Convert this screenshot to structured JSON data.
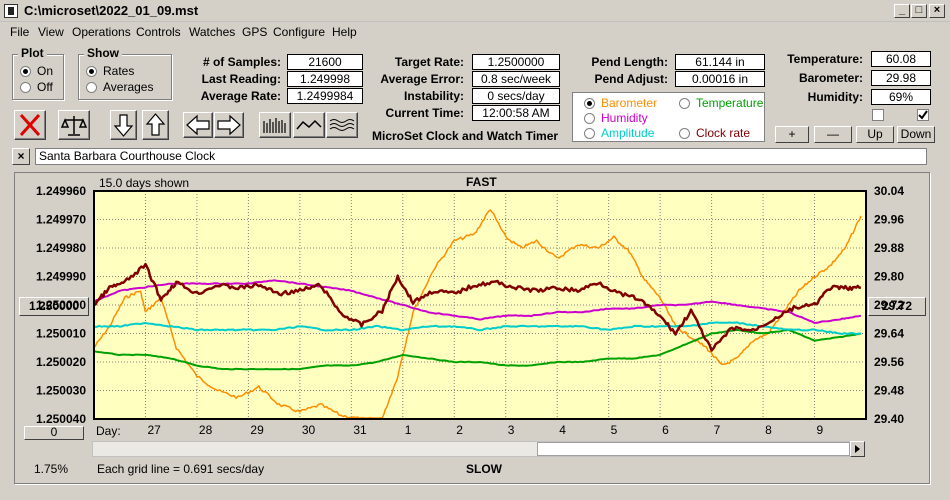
{
  "window": {
    "title": "C:\\microset\\2022_01_09.mst"
  },
  "menu": [
    "File",
    "View",
    "Operations",
    "Controls",
    "Watches",
    "GPS",
    "Configure",
    "Help"
  ],
  "plot_group": {
    "title": "Plot",
    "on": "On",
    "off": "Off",
    "selected": "On"
  },
  "show_group": {
    "title": "Show",
    "rates": "Rates",
    "averages": "Averages",
    "selected": "Rates"
  },
  "stats": {
    "samples_label": "# of Samples:",
    "samples": "21600",
    "last_reading_label": "Last Reading:",
    "last_reading": "1.249998",
    "average_rate_label": "Average Rate:",
    "average_rate": "1.2499984",
    "target_rate_label": "Target Rate:",
    "target_rate": "1.2500000",
    "average_error_label": "Average Error:",
    "average_error": "0.8 sec/week",
    "instability_label": "Instability:",
    "instability": "0 secs/day",
    "current_time_label": "Current Time:",
    "current_time": "12:00:58 AM",
    "app_caption": "MicroSet Clock and Watch Timer",
    "pend_length_label": "Pend Length:",
    "pend_length": "61.144 in",
    "pend_adjust_label": "Pend Adjust:",
    "pend_adjust": "0.00016 in",
    "temperature_label": "Temperature:",
    "temperature": "60.08",
    "barometer_label": "Barometer:",
    "barometer": "29.98",
    "humidity_label": "Humidity:",
    "humidity": "69%"
  },
  "sensor_options": {
    "barometer": "Barometer",
    "temperature": "Temperature",
    "humidity": "Humidity",
    "amplitude": "Amplitude",
    "clock_rate": "Clock rate",
    "selected": "Barometer"
  },
  "colors": {
    "barometer": "#ff8c00",
    "temperature": "#00a000",
    "humidity": "#cc00cc",
    "amplitude": "#00cccc",
    "clock_rate": "#800000",
    "plot_bg": "#ffffc0"
  },
  "adjust_buttons": {
    "plus": "+",
    "minus": "—",
    "up": "Up",
    "down": "Down"
  },
  "clock_name": "Santa Barbara Courthouse Clock",
  "close_x": "×",
  "chart_labels": {
    "days_shown": "15.0 days shown",
    "fast": "FAST",
    "slow": "SLOW",
    "day_label": "Day:",
    "grid_note": "Each grid line = 0.691 secs/day",
    "percent": "1.75%",
    "left_value_btn": "1.250000",
    "right_value_btn": "29.72",
    "bottom_left_btn": "0"
  },
  "chart_data": {
    "type": "line",
    "x_categories": [
      "27",
      "28",
      "29",
      "30",
      "31",
      "1",
      "2",
      "3",
      "4",
      "5",
      "6",
      "7",
      "8",
      "9"
    ],
    "y_left": {
      "ticks": [
        "1.249960",
        "1.249970",
        "1.249980",
        "1.249990",
        "1.250000",
        "1.250010",
        "1.250020",
        "1.250030",
        "1.250040"
      ],
      "range": [
        1.24996,
        1.25004
      ],
      "inverted": true
    },
    "y_right": {
      "ticks": [
        "30.04",
        "29.96",
        "29.88",
        "29.80",
        "29.72",
        "29.64",
        "29.56",
        "29.48",
        "29.40"
      ],
      "range": [
        29.4,
        30.04
      ]
    },
    "x_range": [
      26.0,
      41.0
    ],
    "series": [
      {
        "name": "Barometer",
        "color": "#ff8c00",
        "axis": "right",
        "points": [
          [
            26.0,
            29.6
          ],
          [
            26.3,
            29.66
          ],
          [
            26.6,
            29.74
          ],
          [
            26.9,
            29.76
          ],
          [
            27.0,
            29.7
          ],
          [
            27.3,
            29.74
          ],
          [
            27.6,
            29.6
          ],
          [
            28.0,
            29.52
          ],
          [
            28.4,
            29.48
          ],
          [
            28.8,
            29.46
          ],
          [
            29.2,
            29.49
          ],
          [
            29.6,
            29.44
          ],
          [
            30.0,
            29.42
          ],
          [
            30.4,
            29.44
          ],
          [
            30.8,
            29.41
          ],
          [
            31.2,
            29.4
          ],
          [
            31.6,
            29.4
          ],
          [
            31.9,
            29.52
          ],
          [
            32.2,
            29.7
          ],
          [
            32.6,
            29.82
          ],
          [
            33.0,
            29.9
          ],
          [
            33.4,
            29.92
          ],
          [
            33.7,
            29.99
          ],
          [
            34.0,
            29.91
          ],
          [
            34.3,
            29.88
          ],
          [
            34.6,
            29.9
          ],
          [
            35.0,
            29.85
          ],
          [
            35.4,
            29.89
          ],
          [
            35.8,
            29.88
          ],
          [
            36.1,
            29.91
          ],
          [
            36.4,
            29.87
          ],
          [
            36.7,
            29.79
          ],
          [
            37.0,
            29.74
          ],
          [
            37.3,
            29.66
          ],
          [
            37.6,
            29.63
          ],
          [
            37.9,
            29.6
          ],
          [
            38.2,
            29.55
          ],
          [
            38.5,
            29.57
          ],
          [
            38.8,
            29.62
          ],
          [
            39.1,
            29.64
          ],
          [
            39.4,
            29.7
          ],
          [
            39.7,
            29.76
          ],
          [
            40.0,
            29.8
          ],
          [
            40.3,
            29.83
          ],
          [
            40.6,
            29.88
          ],
          [
            40.9,
            29.97
          ]
        ]
      },
      {
        "name": "Temperature",
        "color": "#00a000",
        "axis": "right",
        "points": [
          [
            26.0,
            29.59
          ],
          [
            26.5,
            29.58
          ],
          [
            27.0,
            29.58
          ],
          [
            27.5,
            29.57
          ],
          [
            28.0,
            29.55
          ],
          [
            28.5,
            29.54
          ],
          [
            29.0,
            29.54
          ],
          [
            29.5,
            29.54
          ],
          [
            30.0,
            29.54
          ],
          [
            30.5,
            29.55
          ],
          [
            31.0,
            29.55
          ],
          [
            31.5,
            29.56
          ],
          [
            32.0,
            29.58
          ],
          [
            32.5,
            29.57
          ],
          [
            33.0,
            29.56
          ],
          [
            33.5,
            29.56
          ],
          [
            34.0,
            29.55
          ],
          [
            34.5,
            29.55
          ],
          [
            35.0,
            29.56
          ],
          [
            35.5,
            29.56
          ],
          [
            36.0,
            29.57
          ],
          [
            36.5,
            29.57
          ],
          [
            37.0,
            29.58
          ],
          [
            37.5,
            29.61
          ],
          [
            38.0,
            29.64
          ],
          [
            38.5,
            29.65
          ],
          [
            39.0,
            29.64
          ],
          [
            39.5,
            29.65
          ],
          [
            40.0,
            29.62
          ],
          [
            40.5,
            29.63
          ],
          [
            40.9,
            29.64
          ]
        ]
      },
      {
        "name": "Humidity",
        "color": "#cc00cc",
        "axis": "right",
        "points": [
          [
            26.0,
            29.73
          ],
          [
            26.5,
            29.76
          ],
          [
            27.0,
            29.77
          ],
          [
            27.5,
            29.78
          ],
          [
            28.0,
            29.78
          ],
          [
            28.5,
            29.78
          ],
          [
            29.0,
            29.78
          ],
          [
            29.5,
            29.79
          ],
          [
            30.0,
            29.78
          ],
          [
            30.5,
            29.77
          ],
          [
            31.0,
            29.76
          ],
          [
            31.5,
            29.74
          ],
          [
            32.0,
            29.72
          ],
          [
            32.5,
            29.7
          ],
          [
            33.0,
            29.69
          ],
          [
            33.5,
            29.68
          ],
          [
            34.0,
            29.69
          ],
          [
            34.5,
            29.69
          ],
          [
            35.0,
            29.7
          ],
          [
            35.5,
            29.7
          ],
          [
            36.0,
            29.71
          ],
          [
            36.5,
            29.71
          ],
          [
            37.0,
            29.72
          ],
          [
            37.5,
            29.72
          ],
          [
            38.0,
            29.73
          ],
          [
            38.5,
            29.72
          ],
          [
            39.0,
            29.71
          ],
          [
            39.5,
            29.7
          ],
          [
            40.0,
            29.67
          ],
          [
            40.5,
            29.68
          ],
          [
            40.9,
            29.69
          ]
        ]
      },
      {
        "name": "Amplitude",
        "color": "#00cccc",
        "axis": "right",
        "points": [
          [
            26.0,
            29.66
          ],
          [
            26.5,
            29.66
          ],
          [
            27.0,
            29.67
          ],
          [
            27.5,
            29.66
          ],
          [
            28.0,
            29.65
          ],
          [
            28.5,
            29.65
          ],
          [
            29.0,
            29.65
          ],
          [
            29.5,
            29.65
          ],
          [
            30.0,
            29.66
          ],
          [
            30.5,
            29.65
          ],
          [
            31.0,
            29.65
          ],
          [
            31.5,
            29.66
          ],
          [
            32.0,
            29.65
          ],
          [
            32.5,
            29.66
          ],
          [
            33.0,
            29.66
          ],
          [
            33.5,
            29.65
          ],
          [
            34.0,
            29.66
          ],
          [
            34.5,
            29.66
          ],
          [
            35.0,
            29.66
          ],
          [
            35.5,
            29.66
          ],
          [
            36.0,
            29.65
          ],
          [
            36.5,
            29.66
          ],
          [
            37.0,
            29.66
          ],
          [
            37.5,
            29.66
          ],
          [
            38.0,
            29.67
          ],
          [
            38.5,
            29.67
          ],
          [
            39.0,
            29.66
          ],
          [
            39.5,
            29.65
          ],
          [
            40.0,
            29.65
          ],
          [
            40.5,
            29.64
          ],
          [
            40.9,
            29.64
          ]
        ]
      },
      {
        "name": "Clock rate",
        "color": "#800000",
        "axis": "left",
        "points": [
          [
            26.0,
            1.25
          ],
          [
            26.3,
            1.249994
          ],
          [
            26.6,
            1.249992
          ],
          [
            27.0,
            1.249986
          ],
          [
            27.3,
            1.249998
          ],
          [
            27.6,
            1.249992
          ],
          [
            28.0,
            1.249996
          ],
          [
            28.4,
            1.249993
          ],
          [
            28.8,
            1.249994
          ],
          [
            29.2,
            1.249993
          ],
          [
            29.6,
            1.249996
          ],
          [
            30.0,
            1.249995
          ],
          [
            30.4,
            1.249993
          ],
          [
            30.8,
            1.250003
          ],
          [
            31.2,
            1.250007
          ],
          [
            31.6,
            1.250002
          ],
          [
            31.9,
            1.24999
          ],
          [
            32.2,
            1.249999
          ],
          [
            32.6,
            1.249995
          ],
          [
            33.0,
            1.249996
          ],
          [
            33.4,
            1.249993
          ],
          [
            33.8,
            1.249992
          ],
          [
            34.2,
            1.249994
          ],
          [
            34.6,
            1.249995
          ],
          [
            35.0,
            1.249994
          ],
          [
            35.4,
            1.249995
          ],
          [
            35.8,
            1.249992
          ],
          [
            36.2,
            1.249996
          ],
          [
            36.6,
            1.249998
          ],
          [
            37.0,
            1.250004
          ],
          [
            37.3,
            1.25001
          ],
          [
            37.6,
            1.250002
          ],
          [
            38.0,
            1.250016
          ],
          [
            38.4,
            1.250008
          ],
          [
            38.8,
            1.250009
          ],
          [
            39.2,
            1.250005
          ],
          [
            39.6,
            1.250001
          ],
          [
            40.0,
            1.25
          ],
          [
            40.3,
            1.249994
          ],
          [
            40.6,
            1.249994
          ],
          [
            40.9,
            1.249994
          ]
        ]
      }
    ]
  }
}
